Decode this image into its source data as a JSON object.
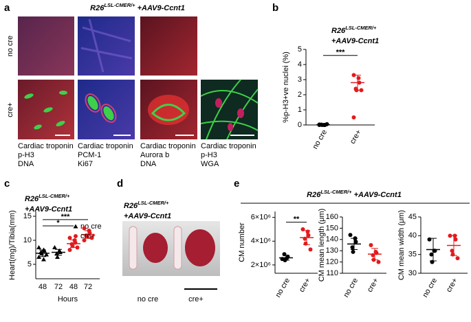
{
  "figure": {
    "a": {
      "label": "a",
      "title": {
        "base": "R26",
        "superscript": "LSL-CMER/+",
        "suffix": " +AAV9-Ccnt1"
      },
      "rows": [
        "no cre",
        "cre+"
      ],
      "columns": [
        [
          {
            "text": "Cardiac troponin",
            "color": "#c8312d"
          },
          {
            "text": "p-H3",
            "color": "#3a9a3a"
          },
          {
            "text": "DNA",
            "color": "#2f3a99"
          }
        ],
        [
          {
            "text": "Cardiac troponin",
            "color": "#2f3a99"
          },
          {
            "text": "PCM-1",
            "color": "#c8312d"
          },
          {
            "text": "Ki67",
            "color": "#3a9a3a"
          }
        ],
        [
          {
            "text": "Cardiac troponin",
            "color": "#c8312d"
          },
          {
            "text": "Aurora b",
            "color": "#3a9a3a"
          },
          {
            "text": "DNA",
            "color": "#2f3a99"
          }
        ],
        [
          {
            "text": "Cardiac troponin",
            "color": "#2f3a99"
          },
          {
            "text": "p-H3",
            "color": "#c8312d"
          },
          {
            "text": "WGA",
            "color": "#3a9a3a"
          }
        ]
      ]
    },
    "b": {
      "label": "b"
    },
    "c": {
      "label": "c"
    },
    "d": {
      "label": "d",
      "title": {
        "base": "R26",
        "superscript": "LSL-CMER/+",
        "suffix": "+AAV9-Ccnt1"
      },
      "captions": [
        "no cre",
        "cre+"
      ]
    },
    "e": {
      "label": "e",
      "title": {
        "base": "R26",
        "superscript": "LSL-CMER/+",
        "suffix": " +AAV9-Ccnt1"
      }
    }
  },
  "chart_data": [
    {
      "type": "dot",
      "title": {
        "base": "R26",
        "superscript": "LSL-CMER/+",
        "suffix": "+AAV9-Ccnt1"
      },
      "y_label": "%p-H3+ve nuclei (%)",
      "categories": [
        "no cre",
        "cre+"
      ],
      "series": [
        {
          "colors": [
            "#000000",
            "#e31a1c"
          ],
          "values": [
            [
              0,
              0,
              0,
              0.02,
              0,
              0.05,
              0.03,
              0
            ],
            [
              3.3,
              3.1,
              2.8,
              2.4,
              2.3,
              2.3,
              0.5
            ]
          ],
          "mean": [
            0.01,
            2.8
          ],
          "error": [
            0.01,
            0.5
          ]
        }
      ],
      "ylim": [
        0,
        5
      ],
      "yticks": [
        0,
        1,
        2,
        3,
        4,
        5
      ],
      "significance": [
        {
          "label": "***"
        }
      ]
    },
    {
      "type": "dot",
      "title": {
        "base": "R26",
        "superscript": "LSL-CMER/+",
        "suffix": "+AAV9-Ccnt1"
      },
      "y_label": "Heart(mg)/Tibia(mm)",
      "x_label": "Hours",
      "categories": [
        "48",
        "72",
        "48",
        "72"
      ],
      "series": [
        {
          "name": "no cre",
          "color": "#000000",
          "marker": "triangle",
          "values": [
            [
              8.5,
              8.0,
              7.8,
              7.5,
              7.2,
              7.0,
              6.5,
              6.0
            ],
            [
              8.5,
              7.8,
              7.5,
              7.2,
              6.5
            ],
            null,
            null
          ],
          "mean": [
            7.3,
            7.5,
            null,
            null
          ],
          "error": [
            0.7,
            0.6,
            null,
            null
          ]
        },
        {
          "name": "cre+",
          "color": "#e31a1c",
          "marker": "circle",
          "values": [
            null,
            null,
            [
              10.5,
              10,
              9.5,
              9.2,
              8.8,
              8.5,
              8.0
            ],
            [
              12.5,
              12,
              11.5,
              11,
              10.8,
              10.5,
              10
            ]
          ],
          "mean": [
            null,
            null,
            9.3,
            11.2
          ],
          "error": [
            null,
            null,
            0.8,
            0.8
          ]
        }
      ],
      "ylim": [
        2,
        16
      ],
      "yticks": [
        5,
        10,
        15
      ],
      "significance": [
        {
          "label": "*"
        },
        {
          "label": "***"
        }
      ]
    },
    {
      "type": "dot",
      "y_label": "CM number",
      "categories": [
        "no cre",
        "cre+"
      ],
      "series": [
        {
          "colors": [
            "#000000",
            "#e31a1c"
          ],
          "values": [
            [
              2500000,
              2600000,
              2700000,
              2900000,
              2400000
            ],
            [
              5000000,
              4800000,
              4500000,
              4200000,
              3800000,
              3300000
            ]
          ],
          "mean": [
            2600000,
            4300000
          ],
          "error": [
            200000,
            600000
          ]
        }
      ],
      "ylim": [
        1300000,
        6500000
      ],
      "yticks": [
        {
          "value": 2000000,
          "label": "2×10⁶"
        },
        {
          "value": 4000000,
          "label": "4×10⁶"
        },
        {
          "value": 6000000,
          "label": "6×10⁶"
        }
      ],
      "significance": [
        {
          "label": "**"
        }
      ]
    },
    {
      "type": "dot",
      "y_label": "CM mean length (μm)",
      "categories": [
        "no cre",
        "cre+"
      ],
      "series": [
        {
          "colors": [
            "#000000",
            "#e31a1c"
          ],
          "values": [
            [
              144,
              141,
              138,
              133,
              129
            ],
            [
              135,
              129,
              128,
              126,
              122,
              120
            ]
          ],
          "mean": [
            136,
            127
          ],
          "error": [
            5,
            5
          ]
        }
      ],
      "ylim": [
        110,
        160
      ],
      "yticks": [
        110,
        120,
        130,
        140,
        150,
        160
      ]
    },
    {
      "type": "dot",
      "y_label": "CM mean width (μm)",
      "categories": [
        "no cre",
        "cre+"
      ],
      "series": [
        {
          "colors": [
            "#000000",
            "#e31a1c"
          ],
          "values": [
            [
              39,
              36,
              36,
              35,
              33
            ],
            [
              40,
              40,
              39,
              36,
              35,
              34
            ]
          ],
          "mean": [
            36.3,
            37.4
          ],
          "error": [
            3,
            2.7
          ]
        }
      ],
      "ylim": [
        30,
        45
      ],
      "yticks": [
        30,
        35,
        40,
        45
      ]
    }
  ]
}
